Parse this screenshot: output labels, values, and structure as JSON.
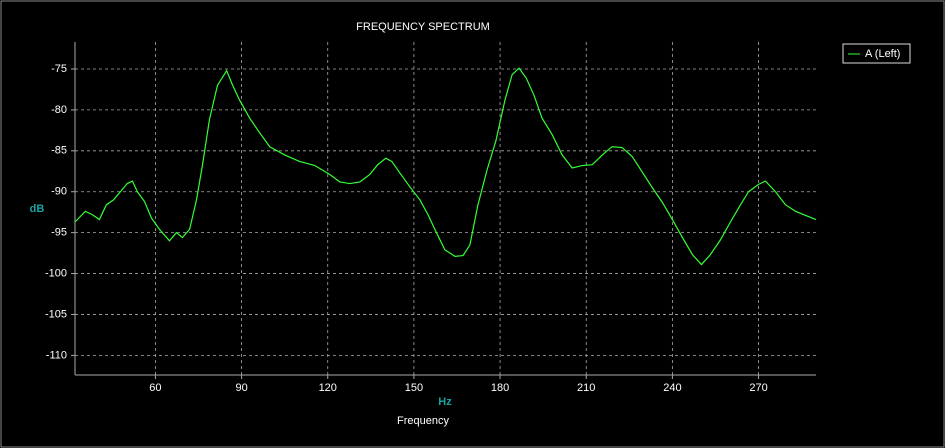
{
  "chart_data": {
    "type": "line",
    "title": "FREQUENCY SPECTRUM",
    "x_label": "Hz",
    "y_label": "dB",
    "caption": "Frequency",
    "x": [
      32,
      35.6,
      38,
      40.5,
      42.9,
      45.4,
      47.8,
      50.2,
      52,
      53.7,
      56.2,
      58.6,
      61.4,
      64.9,
      67.3,
      69.4,
      71.9,
      74.3,
      76.4,
      78.8,
      81.6,
      84.8,
      86.9,
      89.3,
      92.8,
      96.3,
      99.8,
      105,
      110.2,
      115.5,
      120.7,
      124.2,
      127.7,
      131.2,
      134.6,
      137.4,
      140.2,
      142.3,
      145.1,
      148.6,
      152.1,
      154.9,
      157.7,
      160.8,
      164.3,
      167.1,
      169.5,
      172.3,
      175.5,
      178.6,
      181.7,
      184.2,
      186.6,
      189.1,
      191.8,
      194.6,
      198.1,
      201.6,
      205.1,
      208.6,
      212.1,
      215.6,
      219,
      222.5,
      226,
      229.5,
      233,
      236.5,
      240,
      243.5,
      247,
      250.1,
      253.2,
      256.7,
      260.2,
      263.7,
      266.5,
      270,
      272.4,
      275.9,
      279.4,
      282.9,
      286.4,
      290
    ],
    "series": [
      {
        "name": "A (Left)",
        "color": "#33ff33",
        "values": [
          -93.7,
          -92.4,
          -92.8,
          -93.4,
          -91.6,
          -91,
          -90,
          -89,
          -88.7,
          -90,
          -91.2,
          -93.2,
          -94.6,
          -96,
          -95,
          -95.6,
          -94.6,
          -91,
          -86.7,
          -81.2,
          -77,
          -75.2,
          -77,
          -78.8,
          -81,
          -82.8,
          -84.5,
          -85.5,
          -86.3,
          -86.8,
          -87.9,
          -88.8,
          -89,
          -88.8,
          -87.9,
          -86.7,
          -85.9,
          -86.3,
          -87.7,
          -89.4,
          -91,
          -92.8,
          -94.9,
          -97.1,
          -97.9,
          -97.8,
          -96.5,
          -91.6,
          -87.3,
          -83.7,
          -78.8,
          -75.7,
          -74.9,
          -76.1,
          -78.2,
          -81,
          -83,
          -85.5,
          -87.1,
          -86.8,
          -86.7,
          -85.5,
          -84.5,
          -84.6,
          -85.7,
          -87.6,
          -89.5,
          -91.3,
          -93.4,
          -95.6,
          -97.7,
          -98.9,
          -97.7,
          -95.9,
          -93.7,
          -91.6,
          -90,
          -89.1,
          -88.7,
          -90,
          -91.6,
          -92.4,
          -92.9,
          -93.4
        ]
      }
    ],
    "xlim": [
      32,
      290
    ],
    "ylim": [
      -112.4,
      -71.7
    ],
    "xticks": [
      60,
      90,
      120,
      150,
      180,
      210,
      240,
      270
    ],
    "yticks": [
      -75,
      -80,
      -85,
      -90,
      -95,
      -100,
      -105,
      -110
    ],
    "grid": true,
    "legend": "right"
  }
}
